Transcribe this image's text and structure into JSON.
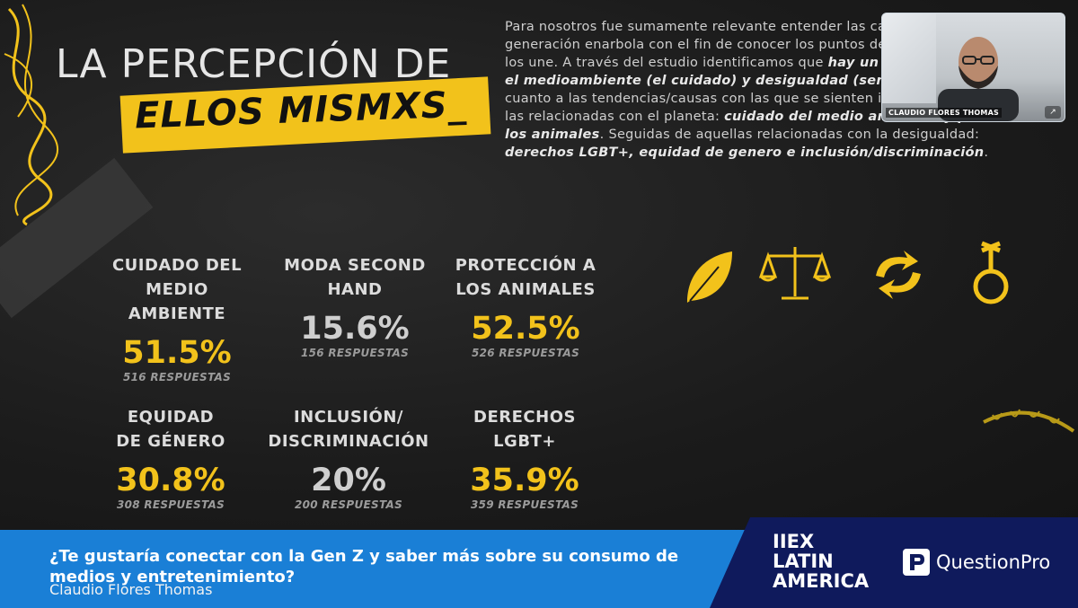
{
  "slide": {
    "title_line1": "LA PERCEPCIÓN DE",
    "title_line2": "ELLOS MISMXS_",
    "intro_p1": "Para nosotros fue sumamente relevante entender las causas que esta generación enarbola con el fin de conocer los puntos de conexión simbólica que los une. A través del estudio identificamos que ",
    "intro_b1": "hay un profundo interés en el medioambiente (el cuidado) y desigualdad (sentido de justicia).",
    "intro_p2": " En cuanto a las tendencias/causas con las que se sienten identificados destacan las relacionadas con el planeta: ",
    "intro_b2": "cuidado del medio ambiente y protección a los animales",
    "intro_p3": ". Seguidas de aquellas relacionadas con la desigualdad: ",
    "intro_b3": "derechos LGBT+, equidad de genero e inclusión/discriminación",
    "intro_p4": ".",
    "stats": [
      {
        "label1": "CUIDADO DEL",
        "label2": "MEDIO AMBIENTE",
        "value": "51.5%",
        "responses": "516 RESPUESTAS",
        "color": "#f2c21b"
      },
      {
        "label1": "MODA SECOND",
        "label2": "HAND",
        "value": "15.6%",
        "responses": "156 RESPUESTAS",
        "color": "#cfcfcf"
      },
      {
        "label1": "PROTECCIÓN A",
        "label2": "LOS ANIMALES",
        "value": "52.5%",
        "responses": "526 RESPUESTAS",
        "color": "#f2c21b"
      },
      {
        "label1": "EQUIDAD",
        "label2": "DE GÉNERO",
        "value": "30.8%",
        "responses": "308 RESPUESTAS",
        "color": "#f2c21b"
      },
      {
        "label1": "INCLUSIÓN/",
        "label2": "DISCRIMINACIÓN",
        "value": "20%",
        "responses": "200 RESPUESTAS",
        "color": "#cfcfcf"
      },
      {
        "label1": "DERECHOS",
        "label2": "LGBT+",
        "value": "35.9%",
        "responses": "359 RESPUESTAS",
        "color": "#f2c21b"
      }
    ],
    "icons": [
      "leaf-icon",
      "scales-icon",
      "recycle-icon",
      "gender-icon"
    ],
    "accent_color": "#f2c21b"
  },
  "video": {
    "speaker_name": "CLAUDIO FLORES THOMAS",
    "expand_glyph": "↗"
  },
  "banner": {
    "question": "¿Te gustaría conectar con la Gen Z y saber más sobre su consumo de medios y entretenimiento?",
    "speaker": "Claudio Flores Thomas",
    "event_line1": "IIEX",
    "event_line2": "LATIN",
    "event_line3": "AMERICA",
    "sponsor": "QuestionPro",
    "color": "#1a7fd6"
  }
}
